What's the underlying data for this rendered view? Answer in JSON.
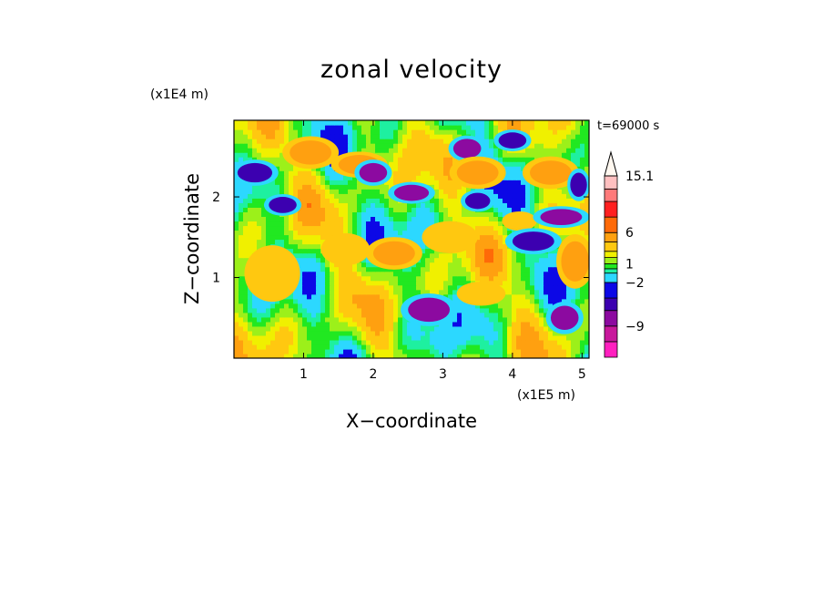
{
  "chart_data": {
    "type": "heatmap",
    "title": "zonal velocity",
    "xlabel": "X−coordinate",
    "ylabel": "Z−coordinate",
    "x_unit": "(x1E5 m)",
    "y_unit": "(x1E4 m)",
    "time_label": "t=69000 s",
    "xlim": [
      0.0,
      5.1
    ],
    "ylim": [
      0.0,
      2.95
    ],
    "x_ticks": [
      1,
      2,
      3,
      4,
      5
    ],
    "x_tick_labels": [
      "1",
      "2",
      "3",
      "4",
      "5"
    ],
    "y_ticks": [
      1,
      2
    ],
    "y_tick_labels": [
      "1",
      "2"
    ],
    "colorbar": {
      "levels": [
        -14,
        -11.5,
        -9,
        -6.5,
        -4.5,
        -2,
        -0.5,
        0.2,
        1,
        2,
        3,
        4.5,
        6,
        8.5,
        11,
        13,
        15.1
      ],
      "labels": [
        {
          "text": "15.1",
          "value": 15.1
        },
        {
          "text": "6",
          "value": 6
        },
        {
          "text": "1",
          "value": 1
        },
        {
          "text": "−2",
          "value": -2
        },
        {
          "text": "−9",
          "value": -9
        }
      ],
      "colors": [
        "#ff1fbf",
        "#c8189c",
        "#8c0aa0",
        "#3c00b0",
        "#0c08e6",
        "#2cd8ff",
        "#1ef0a0",
        "#21e821",
        "#9cf01a",
        "#f0f000",
        "#ffc810",
        "#ffa010",
        "#ff6a08",
        "#ff2020",
        "#ff7a7a",
        "#ffc0c0"
      ],
      "extend": "max"
    },
    "field_blobs": [
      {
        "x": 0.55,
        "y": 1.05,
        "rx": 0.4,
        "ry": 0.35,
        "v": 3
      },
      {
        "x": 0.3,
        "y": 2.3,
        "rx": 0.25,
        "ry": 0.12,
        "v": -6.5
      },
      {
        "x": 0.7,
        "y": 1.9,
        "rx": 0.2,
        "ry": 0.1,
        "v": -6.5
      },
      {
        "x": 1.1,
        "y": 2.55,
        "rx": 0.3,
        "ry": 0.15,
        "v": 4.5
      },
      {
        "x": 1.6,
        "y": 1.35,
        "rx": 0.35,
        "ry": 0.2,
        "v": 3
      },
      {
        "x": 1.8,
        "y": 2.4,
        "rx": 0.3,
        "ry": 0.12,
        "v": 4.5
      },
      {
        "x": 2.0,
        "y": 2.3,
        "rx": 0.2,
        "ry": 0.12,
        "v": -9
      },
      {
        "x": 2.3,
        "y": 1.3,
        "rx": 0.3,
        "ry": 0.15,
        "v": 4.5
      },
      {
        "x": 2.55,
        "y": 2.05,
        "rx": 0.25,
        "ry": 0.1,
        "v": -9
      },
      {
        "x": 2.8,
        "y": 0.6,
        "rx": 0.3,
        "ry": 0.15,
        "v": -9
      },
      {
        "x": 3.1,
        "y": 1.5,
        "rx": 0.4,
        "ry": 0.2,
        "v": 3
      },
      {
        "x": 3.35,
        "y": 2.6,
        "rx": 0.2,
        "ry": 0.12,
        "v": -9
      },
      {
        "x": 3.5,
        "y": 2.3,
        "rx": 0.3,
        "ry": 0.15,
        "v": 4.5
      },
      {
        "x": 3.5,
        "y": 1.95,
        "rx": 0.18,
        "ry": 0.1,
        "v": -6.5
      },
      {
        "x": 3.55,
        "y": 0.8,
        "rx": 0.35,
        "ry": 0.15,
        "v": 3
      },
      {
        "x": 4.0,
        "y": 2.7,
        "rx": 0.2,
        "ry": 0.1,
        "v": -6.5
      },
      {
        "x": 4.1,
        "y": 1.7,
        "rx": 0.25,
        "ry": 0.12,
        "v": 3
      },
      {
        "x": 4.3,
        "y": 1.45,
        "rx": 0.3,
        "ry": 0.12,
        "v": -6.5
      },
      {
        "x": 4.55,
        "y": 2.3,
        "rx": 0.3,
        "ry": 0.15,
        "v": 4.5
      },
      {
        "x": 4.7,
        "y": 1.75,
        "rx": 0.3,
        "ry": 0.1,
        "v": -9
      },
      {
        "x": 4.75,
        "y": 0.5,
        "rx": 0.2,
        "ry": 0.15,
        "v": -9
      },
      {
        "x": 4.9,
        "y": 1.2,
        "rx": 0.2,
        "ry": 0.25,
        "v": 4.5
      },
      {
        "x": 4.95,
        "y": 2.15,
        "rx": 0.12,
        "ry": 0.15,
        "v": -6.5
      }
    ]
  }
}
